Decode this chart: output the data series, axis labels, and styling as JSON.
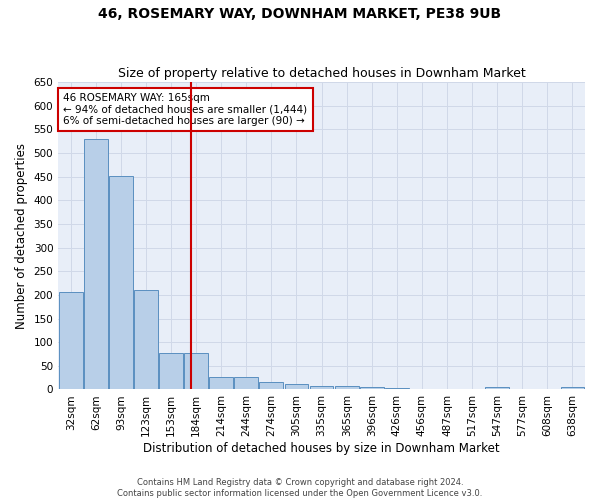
{
  "title": "46, ROSEMARY WAY, DOWNHAM MARKET, PE38 9UB",
  "subtitle": "Size of property relative to detached houses in Downham Market",
  "xlabel": "Distribution of detached houses by size in Downham Market",
  "ylabel": "Number of detached properties",
  "footer_line1": "Contains HM Land Registry data © Crown copyright and database right 2024.",
  "footer_line2": "Contains public sector information licensed under the Open Government Licence v3.0.",
  "categories": [
    "32sqm",
    "62sqm",
    "93sqm",
    "123sqm",
    "153sqm",
    "184sqm",
    "214sqm",
    "244sqm",
    "274sqm",
    "305sqm",
    "335sqm",
    "365sqm",
    "396sqm",
    "426sqm",
    "456sqm",
    "487sqm",
    "517sqm",
    "547sqm",
    "577sqm",
    "608sqm",
    "638sqm"
  ],
  "values": [
    207,
    530,
    452,
    211,
    77,
    77,
    27,
    27,
    15,
    12,
    8,
    7,
    5,
    3,
    1,
    0,
    0,
    5,
    0,
    0,
    5
  ],
  "bar_color": "#b8cfe8",
  "bar_edge_color": "#5a8fc0",
  "grid_color": "#d0d8e8",
  "background_color": "#e8eef8",
  "vline_x": 4.78,
  "vline_color": "#cc0000",
  "annotation_text": "46 ROSEMARY WAY: 165sqm\n← 94% of detached houses are smaller (1,444)\n6% of semi-detached houses are larger (90) →",
  "annotation_box_color": "#cc0000",
  "ylim": [
    0,
    650
  ],
  "yticks": [
    0,
    50,
    100,
    150,
    200,
    250,
    300,
    350,
    400,
    450,
    500,
    550,
    600,
    650
  ],
  "title_fontsize": 10,
  "subtitle_fontsize": 9,
  "tick_fontsize": 7.5,
  "label_fontsize": 8.5,
  "footer_fontsize": 6,
  "annot_fontsize": 7.5
}
